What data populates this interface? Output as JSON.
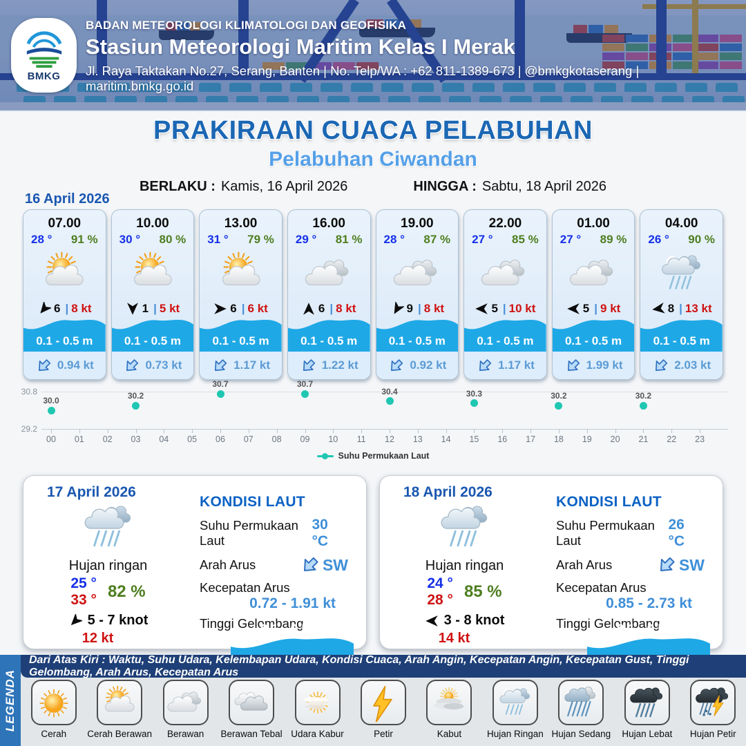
{
  "header": {
    "logo_text": "BMKG",
    "agency": "BADAN METEOROLOGI KLIMATOLOGI DAN GEOFISIKA",
    "station": "Stasiun Meteorologi Maritim Kelas I Merak",
    "address": "Jl. Raya Taktakan No.27, Serang, Banten | No. Telp/WA : +62 811-1389-673 | @bmkgkotaserang | maritim.bmkg.go.id"
  },
  "title": {
    "main": "PRAKIRAAN CUACA PELABUHAN",
    "subtitle": "Pelabuhan Ciwandan",
    "berlaku_label": "BERLAKU :",
    "berlaku_value": "Kamis, 16 April 2026",
    "hingga_label": "HINGGA :",
    "hingga_value": "Sabtu, 18 April 2026"
  },
  "forecast": {
    "date": "16 April 2026",
    "cards": [
      {
        "time": "07.00",
        "temp": "28 °",
        "humidity": "91 %",
        "icon": "cerah-berawan",
        "wind_dir_deg": 220,
        "wind_speed": "6",
        "wind_gust": "8 kt",
        "wave": "0.1 - 0.5 m",
        "current": "0.94 kt",
        "current_dir": "SW"
      },
      {
        "time": "10.00",
        "temp": "30 °",
        "humidity": "80 %",
        "icon": "cerah-berawan",
        "wind_dir_deg": 180,
        "wind_speed": "1",
        "wind_gust": "5 kt",
        "wave": "0.1 - 0.5 m",
        "current": "0.73 kt",
        "current_dir": "SW"
      },
      {
        "time": "13.00",
        "temp": "31 °",
        "humidity": "79 %",
        "icon": "cerah-berawan",
        "wind_dir_deg": 90,
        "wind_speed": "6",
        "wind_gust": "6 kt",
        "wave": "0.1 - 0.5 m",
        "current": "1.17 kt",
        "current_dir": "SW"
      },
      {
        "time": "16.00",
        "temp": "29 °",
        "humidity": "81 %",
        "icon": "berawan",
        "wind_dir_deg": 0,
        "wind_speed": "6",
        "wind_gust": "8 kt",
        "wave": "0.1 - 0.5 m",
        "current": "1.22 kt",
        "current_dir": "SW"
      },
      {
        "time": "19.00",
        "temp": "28 °",
        "humidity": "87 %",
        "icon": "berawan",
        "wind_dir_deg": 210,
        "wind_speed": "9",
        "wind_gust": "8 kt",
        "wave": "0.1 - 0.5 m",
        "current": "0.92 kt",
        "current_dir": "SW"
      },
      {
        "time": "22.00",
        "temp": "27 °",
        "humidity": "85 %",
        "icon": "berawan",
        "wind_dir_deg": 270,
        "wind_speed": "5",
        "wind_gust": "10 kt",
        "wave": "0.1 - 0.5 m",
        "current": "1.17 kt",
        "current_dir": "SW"
      },
      {
        "time": "01.00",
        "temp": "27 °",
        "humidity": "89 %",
        "icon": "berawan",
        "wind_dir_deg": 270,
        "wind_speed": "5",
        "wind_gust": "9 kt",
        "wave": "0.1 - 0.5 m",
        "current": "1.99 kt",
        "current_dir": "SW"
      },
      {
        "time": "04.00",
        "temp": "26 °",
        "humidity": "90 %",
        "icon": "hujan-ringan",
        "wind_dir_deg": 262,
        "wind_speed": "8",
        "wind_gust": "13 kt",
        "wave": "0.1 - 0.5 m",
        "current": "2.03 kt",
        "current_dir": "SW"
      }
    ]
  },
  "chart_data": {
    "type": "scatter",
    "series": [
      {
        "name": "Suhu Permukaan Laut",
        "color": "#1fc7b2",
        "x": [
          0,
          3,
          6,
          9,
          12,
          15,
          18,
          21
        ],
        "values": [
          30.0,
          30.2,
          30.7,
          30.7,
          30.4,
          30.3,
          30.2,
          30.2
        ],
        "labels": [
          "30.0",
          "30.2",
          "30.7",
          "30.7",
          "30.4",
          "30.3",
          "30.2",
          "30.2"
        ]
      }
    ],
    "xticks": [
      "00",
      "01",
      "02",
      "03",
      "04",
      "05",
      "06",
      "07",
      "08",
      "09",
      "10",
      "11",
      "12",
      "13",
      "14",
      "15",
      "16",
      "17",
      "18",
      "19",
      "20",
      "21",
      "22",
      "23"
    ],
    "yticks": [
      "30.8",
      "29.2"
    ],
    "ylim": [
      29.2,
      30.8
    ],
    "grid": true,
    "legend_position": "bottom-center"
  },
  "day_cards": [
    {
      "date": "17 April 2026",
      "icon": "hujan-ringan",
      "condition": "Hujan ringan",
      "temp_min": "25 °",
      "temp_max": "33 °",
      "humidity": "82 %",
      "wind_dir_deg": 225,
      "wind_range": "5 - 7 knot",
      "wind_gust": "12 kt",
      "sea": {
        "title": "KONDISI LAUT",
        "sst_label": "Suhu Permukaan Laut",
        "sst": "30 °C",
        "dir_label": "Arah Arus",
        "dir": "SW",
        "speed_label": "Kecepatan Arus",
        "speed": "0.72 - 1.91 kt",
        "wave_label": "Tinggi Gelombang",
        "wave": "0.1 - 0.5 m"
      }
    },
    {
      "date": "18 April 2026",
      "icon": "hujan-ringan",
      "condition": "Hujan ringan",
      "temp_min": "24 °",
      "temp_max": "28 °",
      "humidity": "85 %",
      "wind_dir_deg": 270,
      "wind_range": "3 - 8 knot",
      "wind_gust": "14 kt",
      "sea": {
        "title": "KONDISI LAUT",
        "sst_label": "Suhu Permukaan Laut",
        "sst": "26 °C",
        "dir_label": "Arah Arus",
        "dir": "SW",
        "speed_label": "Kecepatan Arus",
        "speed": "0.85 - 2.73 kt",
        "wave_label": "Tinggi Gelombang",
        "wave": "0.1 - 0.5 m"
      }
    }
  ],
  "legend": {
    "title": "LEGENDA",
    "description": "Dari Atas Kiri : Waktu, Suhu Udara, Kelembapan Udara, Kondisi Cuaca, Arah Angin, Kecepatan Angin, Kecepatan Gust, Tinggi Gelombang, Arah Arus, Kecepatan Arus",
    "items": [
      {
        "label": "Cerah",
        "icon": "cerah"
      },
      {
        "label": "Cerah Berawan",
        "icon": "cerah-berawan"
      },
      {
        "label": "Berawan",
        "icon": "berawan"
      },
      {
        "label": "Berawan Tebal",
        "icon": "berawan-tebal"
      },
      {
        "label": "Udara Kabur",
        "icon": "udara-kabur"
      },
      {
        "label": "Petir",
        "icon": "petir"
      },
      {
        "label": "Kabut",
        "icon": "kabut"
      },
      {
        "label": "Hujan Ringan",
        "icon": "hujan-ringan"
      },
      {
        "label": "Hujan Sedang",
        "icon": "hujan-sedang"
      },
      {
        "label": "Hujan Lebat",
        "icon": "hujan-lebat"
      },
      {
        "label": "Hujan Petir",
        "icon": "hujan-petir"
      }
    ]
  },
  "colors": {
    "accent_blue": "#1b67b4",
    "subtitle_blue": "#55a0e8",
    "temp_blue": "#1530e8",
    "humidity_green": "#4e7e1f",
    "alert_red": "#cf1212",
    "wave_blue": "#1fa8e6",
    "current_text_blue": "#5b9bd5",
    "teal": "#1fc7b2",
    "date_blue": "#1a57b0",
    "sea_value_blue": "#3f8fd8"
  }
}
